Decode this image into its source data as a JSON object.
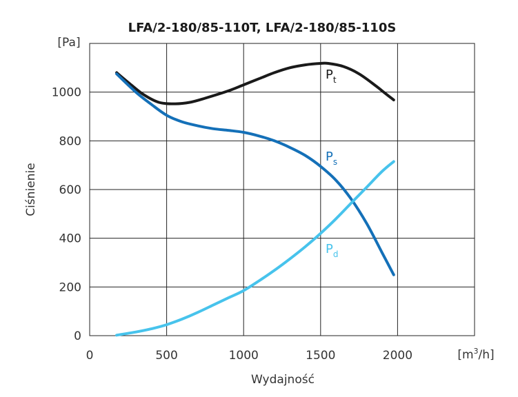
{
  "chart_data": {
    "type": "line",
    "title": "LFA/2-180/85-110T, LFA/2-180/85-110S",
    "xlabel": "Wydajność",
    "ylabel": "Ciśnienie",
    "x_unit": {
      "base": "[m",
      "sup": "3",
      "tail": "/h]"
    },
    "y_unit": "[Pa]",
    "xlim": [
      0,
      2500
    ],
    "ylim": [
      0,
      1200
    ],
    "x_ticks": [
      0,
      500,
      1000,
      1500,
      2000
    ],
    "y_ticks": [
      0,
      200,
      400,
      600,
      800,
      1000
    ],
    "grid": true,
    "series": [
      {
        "name": "Pt",
        "label_main": "P",
        "label_sub": "t",
        "color": "#1a1a1a",
        "x": [
          175,
          250,
          350,
          450,
          550,
          650,
          750,
          900,
          1000,
          1100,
          1200,
          1300,
          1400,
          1500,
          1550,
          1650,
          1750,
          1850,
          1900,
          1975
        ],
        "y": [
          1080,
          1040,
          990,
          958,
          952,
          958,
          975,
          1005,
          1030,
          1055,
          1080,
          1100,
          1112,
          1118,
          1118,
          1105,
          1075,
          1030,
          1005,
          968
        ]
      },
      {
        "name": "Ps",
        "label_main": "P",
        "label_sub": "s",
        "color": "#1470b8",
        "x": [
          175,
          300,
          400,
          500,
          600,
          700,
          800,
          900,
          1000,
          1100,
          1200,
          1300,
          1400,
          1500,
          1600,
          1700,
          1800,
          1900,
          1975
        ],
        "y": [
          1075,
          1000,
          950,
          905,
          878,
          862,
          850,
          843,
          835,
          820,
          800,
          773,
          740,
          695,
          638,
          560,
          460,
          340,
          250
        ]
      },
      {
        "name": "Pd",
        "label_main": "P",
        "label_sub": "d",
        "color": "#47c3ec",
        "x": [
          175,
          300,
          400,
          500,
          600,
          700,
          800,
          900,
          1000,
          1100,
          1200,
          1300,
          1400,
          1500,
          1600,
          1700,
          1800,
          1900,
          1975
        ],
        "y": [
          2,
          15,
          28,
          45,
          68,
          95,
          125,
          155,
          185,
          225,
          268,
          315,
          365,
          420,
          480,
          545,
          610,
          675,
          715
        ]
      }
    ]
  }
}
